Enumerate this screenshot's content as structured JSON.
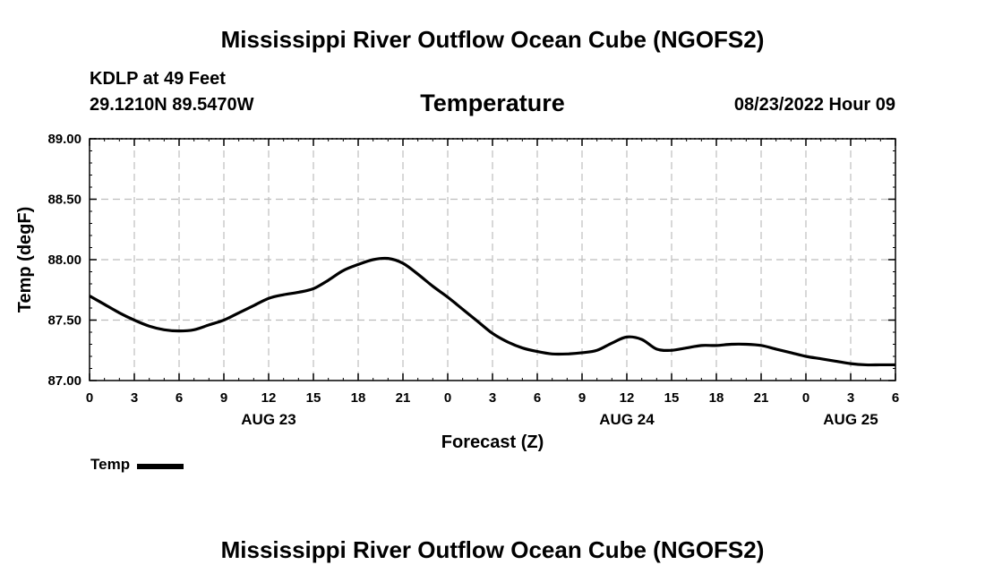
{
  "header": {
    "title": "Mississippi River Outflow Ocean Cube (NGOFS2)",
    "station": "KDLP at 49 Feet",
    "coords": "29.1210N  89.5470W",
    "subtitle": "Temperature",
    "datetime": "08/23/2022 Hour 09"
  },
  "footer": {
    "title": "Mississippi River Outflow Ocean Cube (NGOFS2)"
  },
  "legend": {
    "label": "Temp",
    "color": "#000000"
  },
  "chart_data": {
    "type": "line",
    "title": "Temperature",
    "xlabel": "Forecast (Z)",
    "ylabel": "Temp (degF)",
    "xlim": [
      0,
      54
    ],
    "ylim": [
      87.0,
      89.0
    ],
    "yticks": [
      "87.00",
      "87.50",
      "88.00",
      "88.50",
      "89.00"
    ],
    "yvalues": [
      87.0,
      87.5,
      88.0,
      88.5,
      89.0
    ],
    "xtick_hours": [
      0,
      3,
      6,
      9,
      12,
      15,
      18,
      21,
      24,
      27,
      30,
      33,
      36,
      39,
      42,
      45,
      48,
      51,
      54
    ],
    "xtick_labels": [
      "0",
      "3",
      "6",
      "9",
      "12",
      "15",
      "18",
      "21",
      "0",
      "3",
      "6",
      "9",
      "12",
      "15",
      "18",
      "21",
      "0",
      "3",
      "6"
    ],
    "day_labels": [
      {
        "hour": 12,
        "label": "AUG 23"
      },
      {
        "hour": 36,
        "label": "AUG 24"
      },
      {
        "hour": 51,
        "label": "AUG 25"
      }
    ],
    "grid": true,
    "series": [
      {
        "name": "Temp",
        "x": [
          0,
          1,
          2,
          3,
          4,
          5,
          6,
          7,
          8,
          9,
          10,
          11,
          12,
          13,
          14,
          15,
          16,
          17,
          18,
          19,
          20,
          21,
          22,
          23,
          24,
          25,
          26,
          27,
          28,
          29,
          30,
          31,
          32,
          33,
          34,
          35,
          36,
          37,
          38,
          39,
          40,
          41,
          42,
          43,
          44,
          45,
          46,
          47,
          48,
          49,
          50,
          51,
          52,
          53,
          54
        ],
        "y": [
          87.7,
          87.63,
          87.56,
          87.5,
          87.45,
          87.42,
          87.41,
          87.42,
          87.46,
          87.5,
          87.56,
          87.62,
          87.68,
          87.71,
          87.73,
          87.76,
          87.83,
          87.91,
          87.96,
          88.0,
          88.01,
          87.97,
          87.88,
          87.78,
          87.69,
          87.59,
          87.49,
          87.39,
          87.32,
          87.27,
          87.24,
          87.22,
          87.22,
          87.23,
          87.25,
          87.31,
          87.36,
          87.34,
          87.26,
          87.25,
          87.27,
          87.29,
          87.29,
          87.3,
          87.3,
          87.29,
          87.26,
          87.23,
          87.2,
          87.18,
          87.16,
          87.14,
          87.13,
          87.13,
          87.13
        ]
      }
    ]
  }
}
